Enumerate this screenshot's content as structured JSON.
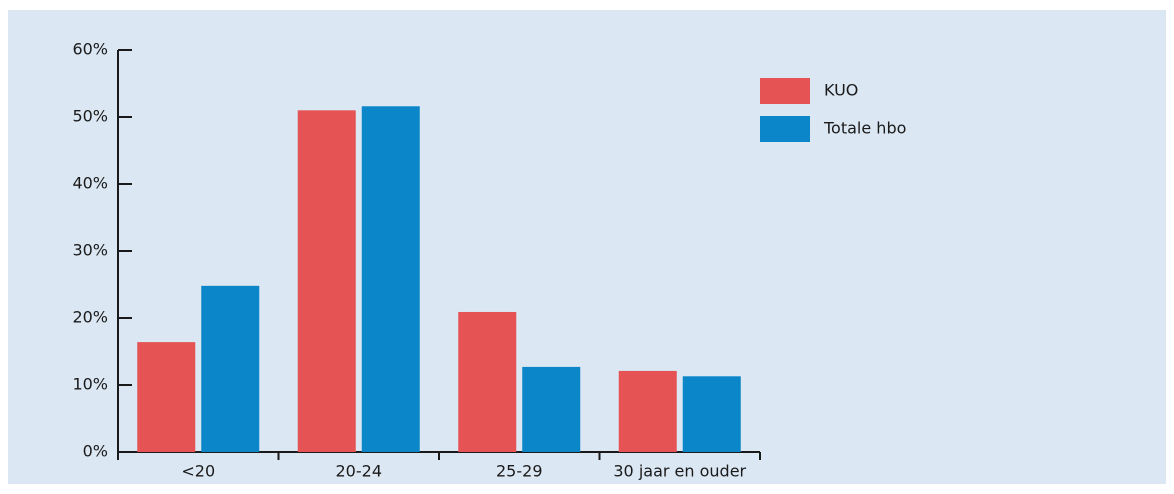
{
  "chart_data": {
    "type": "bar",
    "categories": [
      "<20",
      "20-24",
      "25-29",
      "30 jaar en ouder"
    ],
    "series": [
      {
        "name": "KUO",
        "color": "#e55354",
        "values": [
          16.4,
          51.0,
          20.9,
          12.1
        ]
      },
      {
        "name": "Totale hbo",
        "color": "#0b86c8",
        "values": [
          24.8,
          51.6,
          12.7,
          11.3
        ]
      }
    ],
    "ylim": [
      0,
      60
    ],
    "yticks": [
      {
        "value": 0,
        "label": "0%"
      },
      {
        "value": 10,
        "label": "10%"
      },
      {
        "value": 20,
        "label": "20%"
      },
      {
        "value": 30,
        "label": "30%"
      },
      {
        "value": 40,
        "label": "40%"
      },
      {
        "value": 50,
        "label": "50%"
      },
      {
        "value": 60,
        "label": "60%"
      }
    ],
    "grid": false,
    "legend": "top-right"
  }
}
